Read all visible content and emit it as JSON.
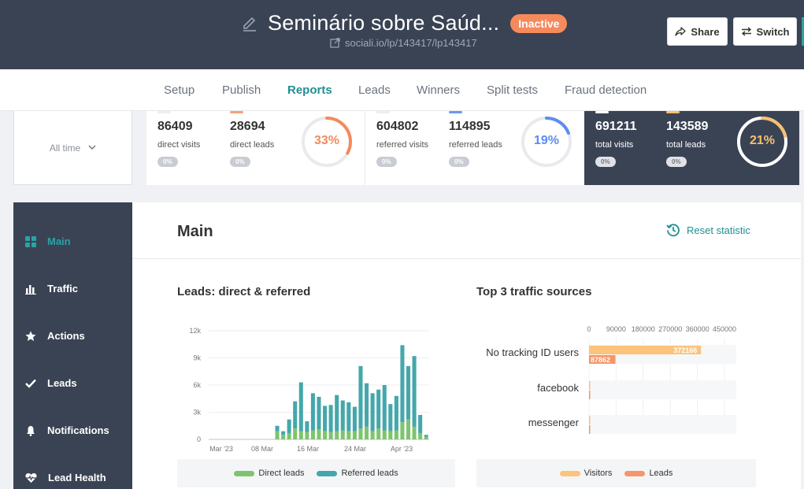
{
  "header": {
    "title": "Seminário sobre Saúd...",
    "status": "Inactive",
    "url": "sociali.io/lp/143417/lp143417",
    "share_label": "Share",
    "switch_label": "Switch"
  },
  "tabs": [
    {
      "label": "Setup"
    },
    {
      "label": "Publish"
    },
    {
      "label": "Reports"
    },
    {
      "label": "Leads"
    },
    {
      "label": "Winners"
    },
    {
      "label": "Split tests"
    },
    {
      "label": "Fraud detection"
    }
  ],
  "active_tab": "Reports",
  "filter": {
    "label": "All time"
  },
  "stats": {
    "direct": {
      "visits": "86409",
      "visits_label": "direct visits",
      "visits_change": "0%",
      "leads": "28694",
      "leads_label": "direct leads",
      "leads_change": "0%",
      "conversion": "33%",
      "conversion_value": 33
    },
    "referred": {
      "visits": "604802",
      "visits_label": "referred visits",
      "visits_change": "0%",
      "leads": "114895",
      "leads_label": "referred leads",
      "leads_change": "0%",
      "conversion": "19%",
      "conversion_value": 19
    },
    "total": {
      "visits": "691211",
      "visits_label": "total visits",
      "visits_change": "0%",
      "leads": "143589",
      "leads_label": "total leads",
      "leads_change": "0%",
      "conversion": "21%",
      "conversion_value": 21
    }
  },
  "sidebar": {
    "items": [
      {
        "label": "Main",
        "icon": "grid-icon"
      },
      {
        "label": "Traffic",
        "icon": "bar-chart-icon"
      },
      {
        "label": "Actions",
        "icon": "star-icon"
      },
      {
        "label": "Leads",
        "icon": "check-icon"
      },
      {
        "label": "Notifications",
        "icon": "bell-icon"
      },
      {
        "label": "Lead Health",
        "icon": "heartbeat-icon"
      }
    ],
    "active": "Main"
  },
  "main": {
    "title": "Main",
    "reset_label": "Reset statistic",
    "leads_chart_title": "Leads: direct & referred",
    "sources_chart_title": "Top 3 traffic sources"
  },
  "colors": {
    "dark": "#3a4354",
    "accent": "#2aa3a3",
    "orange": "#f58a5c",
    "direct": "#7ec46e",
    "referred": "#45a7ab",
    "visitors": "#fbc47a",
    "leads": "#f5966a",
    "referred_ring": "#5b8df0",
    "total_ring": "#f7c070"
  },
  "chart_data": [
    {
      "type": "bar",
      "stacked": true,
      "title": "Leads: direct & referred",
      "x_tick_labels": [
        "Mar '23",
        "08 Mar",
        "16 Mar",
        "24 Mar",
        "Apr '23"
      ],
      "y_tick_labels": [
        "0",
        "3k",
        "6k",
        "9k",
        "12k"
      ],
      "ylim": [
        0,
        12000
      ],
      "grid": true,
      "legend_position": "bottom",
      "series": [
        {
          "name": "Direct leads",
          "values": [
            0,
            0,
            0,
            0,
            0,
            0,
            0,
            0,
            0,
            0,
            0,
            0,
            0,
            0,
            0,
            0,
            0,
            0,
            0,
            0,
            0,
            0,
            0,
            0,
            0,
            0,
            0,
            0,
            0,
            0,
            0,
            0,
            0,
            0,
            0,
            0,
            0,
            0,
            0,
            0,
            0,
            0,
            0,
            0,
            0,
            0,
            0,
            0,
            0,
            0,
            0,
            0,
            0,
            0,
            0,
            0,
            0,
            0,
            0,
            0,
            0,
            0,
            0,
            0,
            0,
            0,
            0,
            0,
            0,
            0,
            0,
            0,
            0,
            0,
            0,
            0,
            0,
            0,
            0,
            0,
            0,
            0,
            0,
            0,
            0,
            0,
            0,
            0,
            0,
            0,
            0,
            0,
            0,
            0,
            0,
            0,
            0,
            0,
            0,
            0,
            0,
            0
          ]
        },
        {
          "name": "Referred leads",
          "values": []
        }
      ],
      "daily": {
        "direct": [
          0,
          0,
          0,
          0,
          0,
          0,
          0,
          0,
          0,
          0,
          0,
          900,
          500,
          700,
          1200,
          900,
          800,
          1000,
          1100,
          900,
          800,
          900,
          1000,
          900,
          900,
          1200,
          1400,
          900,
          1200,
          1000,
          900,
          1000,
          1900,
          2200,
          1400,
          700,
          300
        ],
        "referred": [
          0,
          0,
          0,
          0,
          0,
          0,
          0,
          0,
          0,
          0,
          0,
          600,
          400,
          1500,
          3000,
          5400,
          1200,
          4100,
          3600,
          2800,
          3000,
          4000,
          3300,
          3200,
          2700,
          6900,
          4800,
          4200,
          4300,
          5000,
          3000,
          3800,
          8500,
          5900,
          7800,
          2000,
          200
        ]
      }
    },
    {
      "type": "bar",
      "orientation": "horizontal",
      "title": "Top 3 traffic sources",
      "categories": [
        "No tracking ID users",
        "facebook",
        "messenger"
      ],
      "x_tick_labels": [
        "0",
        "90000",
        "180000",
        "270000",
        "360000",
        "450000"
      ],
      "xlim": [
        0,
        450000
      ],
      "legend_position": "bottom",
      "series": [
        {
          "name": "Visitors",
          "values": [
            372166,
            800,
            600
          ]
        },
        {
          "name": "Leads",
          "values": [
            87862,
            300,
            200
          ]
        }
      ],
      "data_labels": [
        "372166",
        "87862"
      ]
    }
  ]
}
